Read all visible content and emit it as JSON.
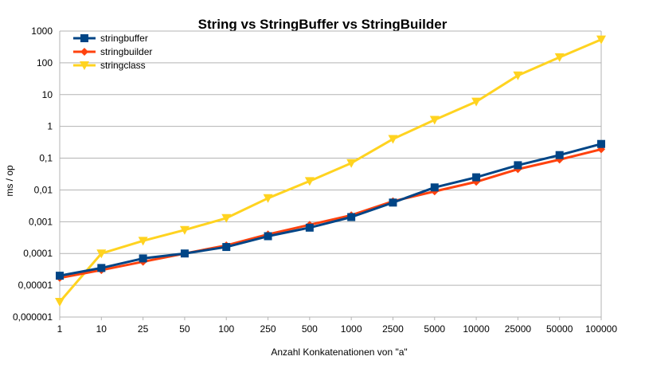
{
  "chart_data": {
    "type": "line",
    "title": "String vs StringBuffer vs StringBuilder",
    "xlabel": "Anzahl Konkatenationen von \"a\"",
    "ylabel": "ms / op",
    "yscale": "log",
    "ylim": [
      1e-06,
      1000
    ],
    "yticks": [
      "0,000001",
      "0,00001",
      "0,0001",
      "0,001",
      "0,01",
      "0,1",
      "1",
      "10",
      "100",
      "1000"
    ],
    "categories": [
      "1",
      "10",
      "25",
      "50",
      "100",
      "250",
      "500",
      "1000",
      "2500",
      "5000",
      "10000",
      "25000",
      "50000",
      "100000"
    ],
    "grid": "horizontal",
    "legend_position": "top-left",
    "series": [
      {
        "name": "stringbuffer",
        "color": "#004586",
        "marker": "square",
        "values": [
          2e-05,
          3.5e-05,
          7e-05,
          0.0001,
          0.00016,
          0.00035,
          0.00065,
          0.0014,
          0.004,
          0.012,
          0.025,
          0.06,
          0.125,
          0.28
        ]
      },
      {
        "name": "stringbuilder",
        "color": "#ff420e",
        "marker": "diamond",
        "values": [
          1.7e-05,
          3e-05,
          5.5e-05,
          0.0001,
          0.00018,
          0.0004,
          0.0008,
          0.0016,
          0.0044,
          0.009,
          0.018,
          0.045,
          0.09,
          0.19
        ]
      },
      {
        "name": "stringclass",
        "color": "#ffd320",
        "marker": "triangle-down",
        "values": [
          3e-06,
          0.0001,
          0.00025,
          0.00055,
          0.0013,
          0.0055,
          0.019,
          0.07,
          0.4,
          1.6,
          6,
          40,
          150,
          540
        ]
      }
    ]
  }
}
